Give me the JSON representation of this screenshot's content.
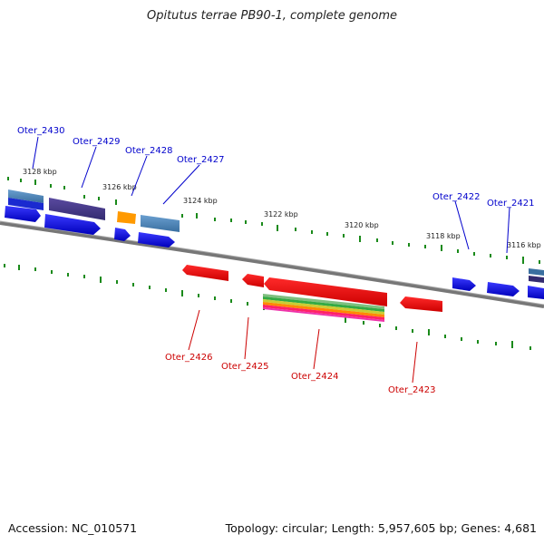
{
  "title": "Opitutus terrae PB90-1, complete genome",
  "accession": "Accession: NC_010571",
  "summary": "Topology: circular; Length: 5,957,605 bp; Genes: 4,681",
  "colors": {
    "forward_label": "#0000cc",
    "reverse_label": "#cc0000",
    "tick": "#1a8a1a",
    "backbone": "#888888"
  },
  "kbp_labels": [
    "3128 kbp",
    "3126 kbp",
    "3124 kbp",
    "3122 kbp",
    "3120 kbp",
    "3118 kbp",
    "3116 kbp"
  ],
  "genes": {
    "forward": [
      "Oter_2430",
      "Oter_2429",
      "Oter_2428",
      "Oter_2427",
      "Oter_2422",
      "Oter_2421"
    ],
    "reverse": [
      "Oter_2426",
      "Oter_2425",
      "Oter_2424",
      "Oter_2423"
    ]
  }
}
